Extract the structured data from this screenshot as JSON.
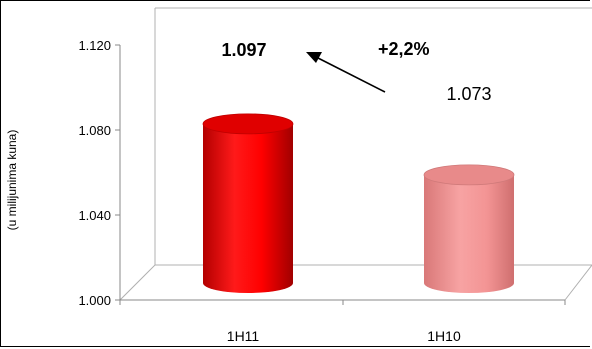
{
  "chart_data": {
    "type": "bar",
    "style": "3d-cylinder",
    "categories": [
      "1H11",
      "1H10"
    ],
    "values": [
      1097,
      1073
    ],
    "data_labels": [
      "1.097",
      "1.073"
    ],
    "data_label_bold": [
      true,
      false
    ],
    "colors": [
      "#ff0000",
      "#f59a9a"
    ],
    "ylabel": "(u milijunima kuna)",
    "ylim": [
      1000,
      1120
    ],
    "yticks": [
      {
        "value": 1000,
        "label": "1.000"
      },
      {
        "value": 1040,
        "label": "1.040"
      },
      {
        "value": 1080,
        "label": "1.080"
      },
      {
        "value": 1120,
        "label": "1.120"
      }
    ],
    "annotation": {
      "text": "+2,2%",
      "arrow": "points-to-first-label"
    },
    "grid": false,
    "legend": "none"
  }
}
